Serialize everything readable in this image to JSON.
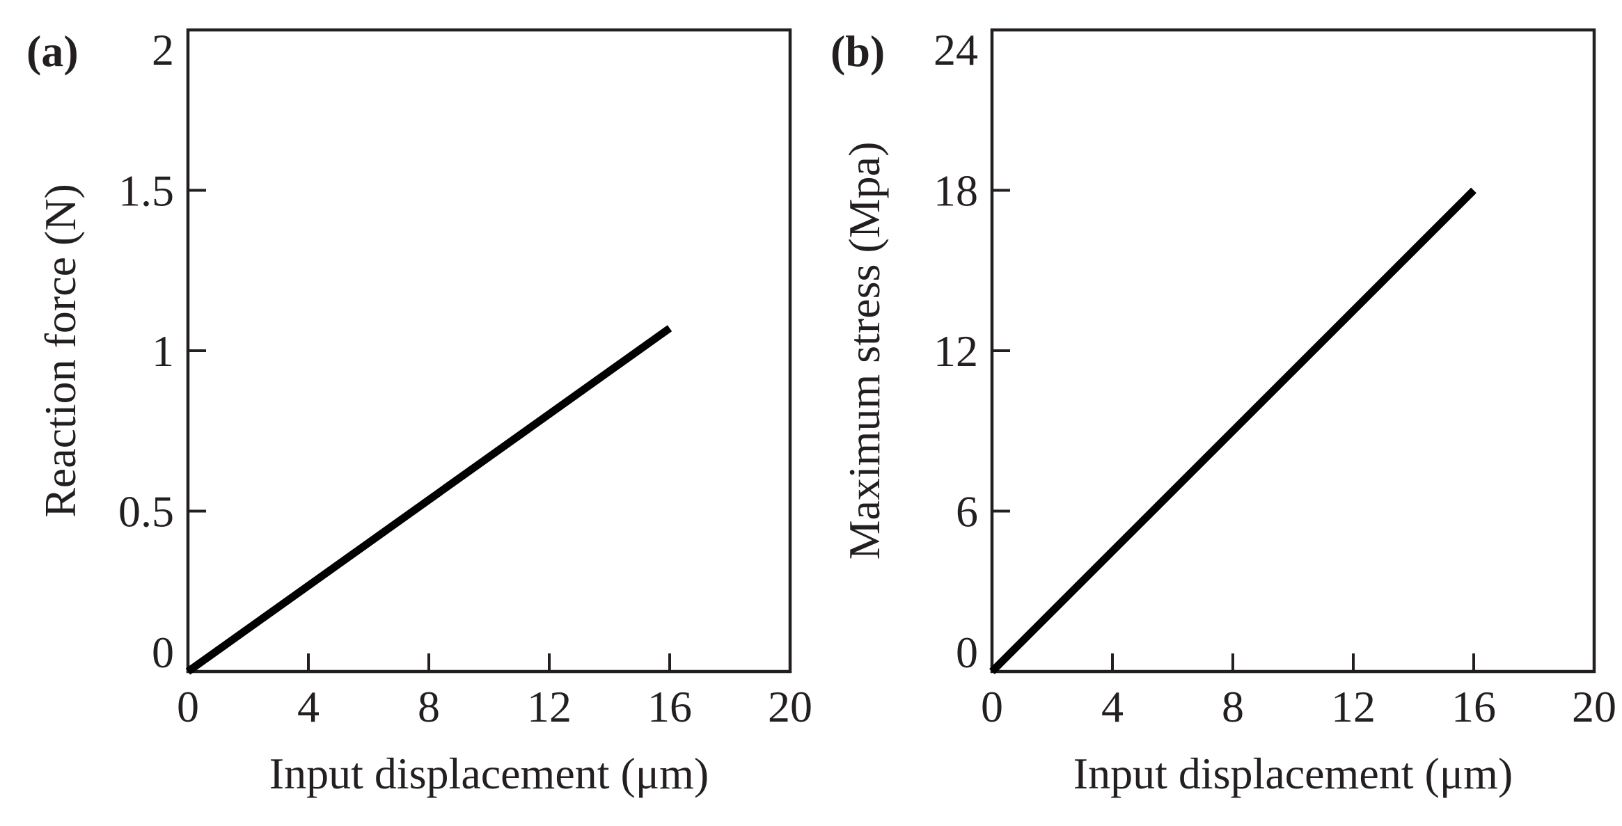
{
  "colors": {
    "axis": "#231f20",
    "line": "#000000",
    "background": "#ffffff"
  },
  "chart_data": [
    {
      "type": "line",
      "panel_label": "(a)",
      "title": "",
      "xlabel": "Input displacement (μm)",
      "ylabel": "Reaction force (N)",
      "xlim": [
        0,
        20
      ],
      "ylim": [
        0,
        2
      ],
      "xticks": [
        0,
        4,
        8,
        12,
        16,
        20
      ],
      "xtick_labels": [
        "0",
        "4",
        "8",
        "12",
        "16",
        "20"
      ],
      "yticks": [
        0,
        0.5,
        1,
        1.5,
        2
      ],
      "ytick_labels": [
        "0",
        "0.5",
        "1",
        "1.5",
        "2"
      ],
      "grid": false,
      "series": [
        {
          "x": [
            0,
            16
          ],
          "y": [
            0,
            1.07
          ]
        }
      ]
    },
    {
      "type": "line",
      "panel_label": "(b)",
      "title": "",
      "xlabel": "Input displacement (μm)",
      "ylabel": "Maximum stress (Mpa)",
      "xlim": [
        0,
        20
      ],
      "ylim": [
        0,
        24
      ],
      "xticks": [
        0,
        4,
        8,
        12,
        16,
        20
      ],
      "xtick_labels": [
        "0",
        "4",
        "8",
        "12",
        "16",
        "20"
      ],
      "yticks": [
        0,
        6,
        12,
        18,
        24
      ],
      "ytick_labels": [
        "0",
        "6",
        "12",
        "18",
        "24"
      ],
      "grid": false,
      "series": [
        {
          "x": [
            0,
            16
          ],
          "y": [
            0,
            18
          ]
        }
      ]
    }
  ]
}
